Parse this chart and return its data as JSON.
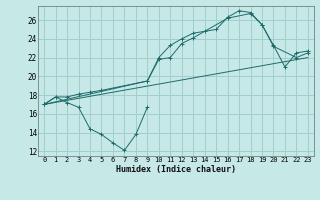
{
  "background_color": "#c6e8e6",
  "grid_color": "#a2cece",
  "line_color": "#1e6b6b",
  "xlabel": "Humidex (Indice chaleur)",
  "xlim": [
    -0.5,
    23.5
  ],
  "ylim": [
    11.5,
    27.5
  ],
  "yticks": [
    12,
    14,
    16,
    18,
    20,
    22,
    24,
    26
  ],
  "xticks": [
    0,
    1,
    2,
    3,
    4,
    5,
    6,
    7,
    8,
    9,
    10,
    11,
    12,
    13,
    14,
    15,
    16,
    17,
    18,
    19,
    20,
    21,
    22,
    23
  ],
  "series": [
    {
      "x": [
        0,
        1,
        2,
        3,
        4,
        5,
        6,
        7,
        8,
        9
      ],
      "y": [
        17.0,
        17.8,
        17.2,
        16.7,
        14.4,
        13.8,
        12.9,
        12.1,
        13.8,
        16.7
      ]
    },
    {
      "x": [
        0,
        1,
        2,
        3,
        4,
        5,
        9,
        10,
        11,
        12,
        13,
        14,
        15,
        16,
        17,
        18,
        19,
        20,
        21,
        22,
        23
      ],
      "y": [
        17.0,
        17.8,
        17.8,
        18.1,
        18.3,
        18.5,
        19.5,
        22.0,
        23.3,
        24.0,
        24.6,
        24.8,
        25.0,
        26.3,
        27.0,
        26.8,
        25.5,
        23.3,
        21.0,
        22.5,
        22.7
      ]
    },
    {
      "x": [
        0,
        9,
        10,
        11,
        12,
        13,
        16,
        18,
        19,
        20,
        22,
        23
      ],
      "y": [
        17.0,
        19.5,
        21.8,
        22.0,
        23.5,
        24.1,
        26.2,
        26.7,
        25.5,
        23.2,
        22.0,
        22.5
      ]
    },
    {
      "x": [
        0,
        23
      ],
      "y": [
        17.0,
        22.0
      ]
    }
  ]
}
